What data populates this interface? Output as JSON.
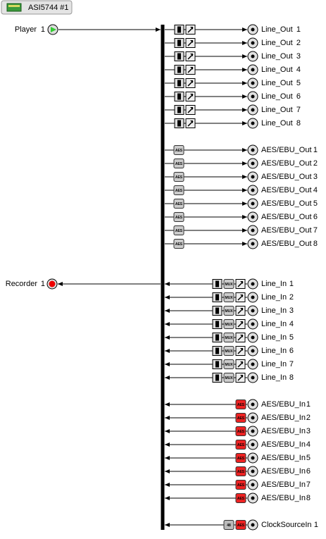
{
  "header": {
    "title": "ASI5744 #1"
  },
  "icons": {
    "aes": "AES",
    "mux": "MUX",
    "clock": "48"
  },
  "player": {
    "name": "Player",
    "index": 1
  },
  "recorder": {
    "name": "Recorder",
    "index": 1
  },
  "line_out": {
    "name": "Line_Out",
    "indices": [
      1,
      2,
      3,
      4,
      5,
      6,
      7,
      8
    ]
  },
  "aes_out": {
    "name": "AES/EBU_Out",
    "indices": [
      1,
      2,
      3,
      4,
      5,
      6,
      7,
      8
    ]
  },
  "line_in": {
    "name": "Line_In",
    "indices": [
      1,
      2,
      3,
      4,
      5,
      6,
      7,
      8
    ]
  },
  "aes_in": {
    "name": "AES/EBU_In",
    "indices": [
      1,
      2,
      3,
      4,
      5,
      6,
      7,
      8
    ]
  },
  "clock_in": {
    "name": "ClockSourceIn",
    "index": 1
  }
}
